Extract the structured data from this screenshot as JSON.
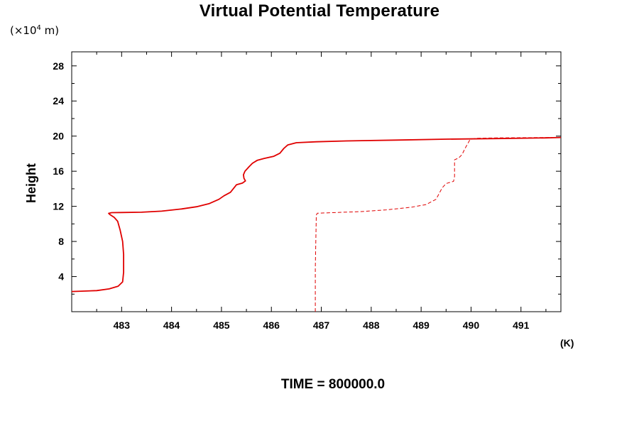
{
  "chart_data": {
    "type": "line",
    "title": "Virtual Potential Temperature",
    "ylabel": "Height",
    "yunit_prefix": "(×10",
    "yunit_exp": "4",
    "yunit_suffix": " m)",
    "xunit": "(K)",
    "footer": "TIME = 800000.0",
    "xlim": [
      482.0,
      491.8
    ],
    "ylim": [
      0.0,
      29.6
    ],
    "xticks": [
      483,
      484,
      485,
      486,
      487,
      488,
      489,
      490,
      491
    ],
    "yticks": [
      4,
      8,
      12,
      16,
      20,
      24,
      28
    ],
    "colors": {
      "series": "#e00000",
      "axes": "#000000"
    },
    "series": [
      {
        "style": "solid",
        "points": [
          [
            482.0,
            2.3
          ],
          [
            482.5,
            2.4
          ],
          [
            482.75,
            2.6
          ],
          [
            482.93,
            2.9
          ],
          [
            483.02,
            3.4
          ],
          [
            483.04,
            4.5
          ],
          [
            483.04,
            6.5
          ],
          [
            483.02,
            8.0
          ],
          [
            482.97,
            9.3
          ],
          [
            482.92,
            10.3
          ],
          [
            482.85,
            10.75
          ],
          [
            482.77,
            11.05
          ],
          [
            482.74,
            11.2
          ],
          [
            482.8,
            11.28
          ],
          [
            483.0,
            11.3
          ],
          [
            483.4,
            11.33
          ],
          [
            483.8,
            11.45
          ],
          [
            484.2,
            11.7
          ],
          [
            484.5,
            11.95
          ],
          [
            484.75,
            12.3
          ],
          [
            484.95,
            12.8
          ],
          [
            485.05,
            13.2
          ],
          [
            485.18,
            13.6
          ],
          [
            485.25,
            14.1
          ],
          [
            485.3,
            14.45
          ],
          [
            485.42,
            14.65
          ],
          [
            485.48,
            14.9
          ],
          [
            485.45,
            15.2
          ],
          [
            485.44,
            15.6
          ],
          [
            485.47,
            16.0
          ],
          [
            485.55,
            16.5
          ],
          [
            485.62,
            16.9
          ],
          [
            485.72,
            17.25
          ],
          [
            485.85,
            17.45
          ],
          [
            486.05,
            17.7
          ],
          [
            486.17,
            18.05
          ],
          [
            486.25,
            18.6
          ],
          [
            486.33,
            19.0
          ],
          [
            486.5,
            19.25
          ],
          [
            486.9,
            19.35
          ],
          [
            487.5,
            19.45
          ],
          [
            488.5,
            19.55
          ],
          [
            489.5,
            19.65
          ],
          [
            490.5,
            19.72
          ],
          [
            491.5,
            19.8
          ],
          [
            491.8,
            19.85
          ]
        ]
      },
      {
        "style": "dashed",
        "points": [
          [
            486.88,
            0.0
          ],
          [
            486.88,
            5.0
          ],
          [
            486.9,
            11.0
          ],
          [
            486.92,
            11.22
          ],
          [
            487.3,
            11.3
          ],
          [
            487.8,
            11.4
          ],
          [
            488.3,
            11.6
          ],
          [
            488.8,
            11.9
          ],
          [
            489.1,
            12.2
          ],
          [
            489.3,
            12.8
          ],
          [
            489.42,
            14.1
          ],
          [
            489.5,
            14.6
          ],
          [
            489.65,
            14.85
          ],
          [
            489.67,
            15.4
          ],
          [
            489.67,
            17.3
          ],
          [
            489.75,
            17.5
          ],
          [
            489.82,
            17.9
          ],
          [
            489.88,
            18.6
          ],
          [
            489.93,
            19.1
          ],
          [
            489.98,
            19.6
          ],
          [
            490.1,
            19.75
          ],
          [
            490.5,
            19.8
          ],
          [
            491.0,
            19.82
          ],
          [
            491.8,
            19.85
          ]
        ]
      }
    ]
  }
}
